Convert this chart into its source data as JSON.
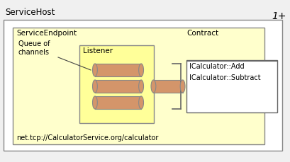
{
  "bg_color": "#f0f0f0",
  "outer_box_color": "#ffffff",
  "outer_box_edge": "#888888",
  "inner_box_color": "#ffffcc",
  "inner_box_edge": "#888888",
  "listener_box_color": "#ffff99",
  "listener_box_edge": "#888888",
  "contract_box_color": "#ffffff",
  "contract_box_edge": "#666666",
  "cylinder_face_color": "#d4956a",
  "cylinder_edge_color": "#888888",
  "title_outer": "ServiceHost",
  "title_inner": "ServiceEndpoint",
  "label_queue": "Queue of\nchannels",
  "label_listener": "Listener",
  "label_contract": "Contract",
  "label_url": "net.tcp://CalculatorService.org/calculator",
  "label_methods": "ICalculator::Add\nICalculator::Subtract",
  "label_multiplicity": "1+",
  "font_size_title": 8.5,
  "font_size_label": 7.5,
  "font_size_small": 7.0,
  "font_size_url": 7.0,
  "font_size_multiplicity": 10
}
